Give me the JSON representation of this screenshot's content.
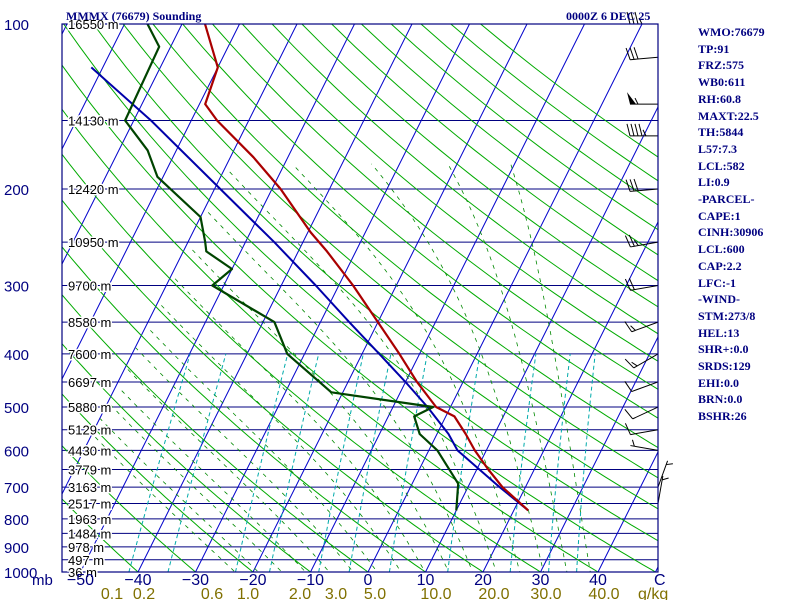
{
  "header": {
    "title": "MMMX (76679) Sounding",
    "timestamp": "0000Z  6 DEC 25"
  },
  "stats": [
    "WMO:76679",
    "TP:91",
    "FRZ:575",
    "WB0:611",
    "RH:60.8",
    "MAXT:22.5",
    "TH:5844",
    "L57:7.3",
    "LCL:582",
    "LI:0.9",
    "-PARCEL-",
    "CAPE:1",
    "CINH:30906",
    "LCL:600",
    "CAP:2.2",
    "LFC:-1",
    "-WIND-",
    "STM:273/8",
    "HEL:13",
    "SHR+:0.0",
    "SRDS:129",
    "EHI:0.0",
    "BRN:0.0",
    "BSHR:26"
  ],
  "colors": {
    "frame": "#000080",
    "isobar": "#000080",
    "isotherm": "#0000cc",
    "dry_adiabat": "#00aa00",
    "moist_adiabat": "#008800",
    "mixing_ratio": "#00aaaa",
    "temperature": "#aa0000",
    "dewpoint": "#004400",
    "parcel": "#0000aa",
    "ticklabel": "#000080",
    "mixlabel": "#807000"
  },
  "chart_data": {
    "type": "skew-t",
    "title": "MMMX (76679) Sounding",
    "xlabel": "C",
    "ylabel": "mb",
    "pressure_levels": [
      100,
      200,
      300,
      400,
      500,
      600,
      700,
      800,
      900,
      1000
    ],
    "pressure_ticks": [
      "100",
      "200",
      "300",
      "400",
      "500",
      "600",
      "700",
      "800",
      "900",
      "1000"
    ],
    "height_labels": [
      {
        "p": 100,
        "label": "16550 m"
      },
      {
        "p": 150,
        "label": "14130 m"
      },
      {
        "p": 200,
        "label": "12420 m"
      },
      {
        "p": 250,
        "label": "10950 m"
      },
      {
        "p": 300,
        "label": "9700 m"
      },
      {
        "p": 350,
        "label": "8580 m"
      },
      {
        "p": 400,
        "label": "7600 m"
      },
      {
        "p": 450,
        "label": "6697 m"
      },
      {
        "p": 500,
        "label": "5880 m"
      },
      {
        "p": 550,
        "label": "5129 m"
      },
      {
        "p": 600,
        "label": "4430 m"
      },
      {
        "p": 650,
        "label": "3779 m"
      },
      {
        "p": 700,
        "label": "3163 m"
      },
      {
        "p": 750,
        "label": "2517 m"
      },
      {
        "p": 800,
        "label": "1963 m"
      },
      {
        "p": 850,
        "label": "1484 m"
      },
      {
        "p": 900,
        "label": "978 m"
      },
      {
        "p": 950,
        "label": "497 m"
      },
      {
        "p": 1000,
        "label": "36 m"
      }
    ],
    "temp_ticks": [
      "−50",
      "−40",
      "−30",
      "−20",
      "−10",
      "0",
      "10",
      "20",
      "30",
      "40"
    ],
    "temp_tick_values": [
      -50,
      -40,
      -30,
      -20,
      -10,
      0,
      10,
      20,
      30,
      40
    ],
    "unit_label": "C",
    "mb_label": "mb",
    "mix_ticks": [
      "0.1",
      "0.2",
      "0.6",
      "1.0",
      "2.0",
      "3.0",
      "5.0",
      "10.0",
      "20.0",
      "30.0",
      "40.0"
    ],
    "mix_values": [
      0.1,
      0.2,
      0.6,
      1.0,
      2.0,
      3.0,
      5.0,
      10.0,
      20.0,
      30.0,
      40.0
    ],
    "mix_unit": "g/kg",
    "temperature": [
      {
        "p": 772,
        "t": 22.5
      },
      {
        "p": 700,
        "t": 16.0
      },
      {
        "p": 650,
        "t": 12.0
      },
      {
        "p": 600,
        "t": 8.0
      },
      {
        "p": 560,
        "t": 5.0
      },
      {
        "p": 520,
        "t": 1.5
      },
      {
        "p": 500,
        "t": -2.5
      },
      {
        "p": 450,
        "t": -8.0
      },
      {
        "p": 400,
        "t": -13.5
      },
      {
        "p": 350,
        "t": -20.0
      },
      {
        "p": 300,
        "t": -27.5
      },
      {
        "p": 260,
        "t": -35.0
      },
      {
        "p": 240,
        "t": -39.5
      },
      {
        "p": 200,
        "t": -48.5
      },
      {
        "p": 175,
        "t": -56.0
      },
      {
        "p": 150,
        "t": -65.5
      },
      {
        "p": 140,
        "t": -69.0
      },
      {
        "p": 120,
        "t": -70.0
      },
      {
        "p": 100,
        "t": -76.0
      }
    ],
    "dewpoint": [
      {
        "p": 772,
        "t": 10.0
      },
      {
        "p": 690,
        "t": 8.0
      },
      {
        "p": 640,
        "t": 4.5
      },
      {
        "p": 600,
        "t": 1.5
      },
      {
        "p": 560,
        "t": -3.0
      },
      {
        "p": 520,
        "t": -5.5
      },
      {
        "p": 500,
        "t": -3.0
      },
      {
        "p": 470,
        "t": -22.0
      },
      {
        "p": 400,
        "t": -33.0
      },
      {
        "p": 350,
        "t": -38.0
      },
      {
        "p": 300,
        "t": -52.0
      },
      {
        "p": 280,
        "t": -50.0
      },
      {
        "p": 260,
        "t": -56.0
      },
      {
        "p": 250,
        "t": -57.0
      },
      {
        "p": 225,
        "t": -60.0
      },
      {
        "p": 190,
        "t": -71.0
      },
      {
        "p": 170,
        "t": -75.0
      },
      {
        "p": 150,
        "t": -81.5
      },
      {
        "p": 110,
        "t": -82.0
      },
      {
        "p": 100,
        "t": -86.0
      }
    ],
    "parcel": [
      {
        "p": 772,
        "t": 22.5
      },
      {
        "p": 700,
        "t": 15.5
      },
      {
        "p": 600,
        "t": 5.0
      },
      {
        "p": 560,
        "t": 2.0
      },
      {
        "p": 500,
        "t": -4.0
      },
      {
        "p": 450,
        "t": -10.0
      },
      {
        "p": 400,
        "t": -17.0
      },
      {
        "p": 350,
        "t": -25.0
      },
      {
        "p": 300,
        "t": -34.0
      },
      {
        "p": 250,
        "t": -45.0
      },
      {
        "p": 200,
        "t": -59.0
      },
      {
        "p": 150,
        "t": -77.0
      },
      {
        "p": 120,
        "t": -92.0
      }
    ],
    "wind_barbs": [
      {
        "p": 100,
        "dir": 270,
        "spd": 35
      },
      {
        "p": 115,
        "dir": 265,
        "spd": 30
      },
      {
        "p": 140,
        "dir": 270,
        "spd": 55
      },
      {
        "p": 160,
        "dir": 270,
        "spd": 45
      },
      {
        "p": 200,
        "dir": 265,
        "spd": 30
      },
      {
        "p": 250,
        "dir": 260,
        "spd": 25
      },
      {
        "p": 300,
        "dir": 260,
        "spd": 20
      },
      {
        "p": 350,
        "dir": 250,
        "spd": 15
      },
      {
        "p": 400,
        "dir": 240,
        "spd": 15
      },
      {
        "p": 450,
        "dir": 250,
        "spd": 10
      },
      {
        "p": 500,
        "dir": 245,
        "spd": 10
      },
      {
        "p": 550,
        "dir": 260,
        "spd": 10
      },
      {
        "p": 600,
        "dir": 280,
        "spd": 5
      },
      {
        "p": 700,
        "dir": 20,
        "spd": 5
      },
      {
        "p": 750,
        "dir": 10,
        "spd": 5
      }
    ]
  }
}
